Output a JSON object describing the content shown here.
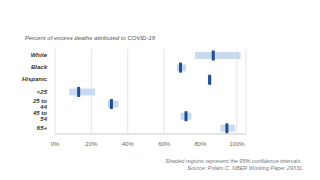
{
  "chart_data": {
    "type": "interval",
    "title": "Percent of excess deaths attributed to COVID-19",
    "orientation": "horizontal",
    "categories": [
      "White",
      "Black",
      "Hispanic",
      "<25",
      "25 to 44",
      "45 to 54",
      "65+"
    ],
    "values": [
      87,
      69,
      85,
      13,
      31,
      72,
      94.5
    ],
    "ci_low": [
      77,
      67,
      84,
      8,
      29,
      69,
      91
    ],
    "ci_high": [
      102,
      72,
      86,
      22,
      35,
      75,
      99
    ],
    "color": "#1d4f91",
    "xlim": [
      0,
      105
    ],
    "xticks": [
      {
        "value": 0,
        "label": "0%"
      },
      {
        "value": 20,
        "label": "20%"
      },
      {
        "value": 40,
        "label": "40%"
      },
      {
        "value": 60,
        "label": "60%"
      },
      {
        "value": 80,
        "label": "80%"
      },
      {
        "value": 100,
        "label": "100%"
      }
    ],
    "grid": true,
    "annotations": [
      "Shaded regions represent the 95% confidence intervals.",
      "Source: Polam C, NBER Working Paper 29331"
    ]
  }
}
